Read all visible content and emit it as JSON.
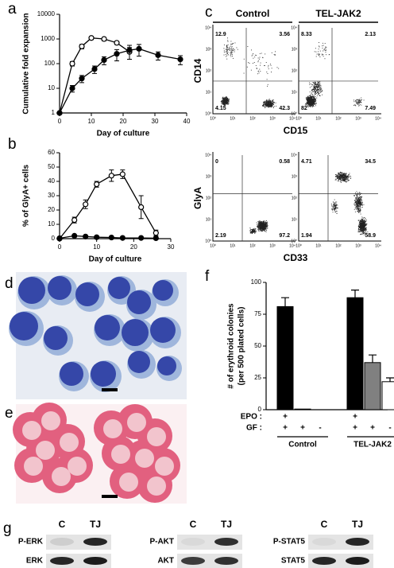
{
  "panel_labels": [
    "a",
    "b",
    "c",
    "d",
    "e",
    "f",
    "g"
  ],
  "chart_data": [
    {
      "type": "line",
      "ylabel": "Cumulative fold expansion",
      "xlabel": "Day of culture",
      "xlim": [
        0,
        40
      ],
      "xticks": [
        0,
        10,
        20,
        30,
        40
      ],
      "ylim": [
        1,
        10000
      ],
      "yticks": [
        1,
        10,
        100,
        1000,
        10000
      ],
      "log_y": true,
      "series": [
        {
          "marker": "open",
          "color": "#000000",
          "x": [
            0,
            4,
            7,
            10,
            14,
            18,
            22
          ],
          "values": [
            1,
            100,
            500,
            1100,
            1000,
            700,
            300
          ],
          "errors": [
            0,
            20,
            100,
            150,
            150,
            100,
            150
          ]
        },
        {
          "marker": "filled",
          "color": "#000000",
          "x": [
            0,
            4,
            7,
            11,
            14,
            18,
            22,
            25,
            31,
            38
          ],
          "values": [
            1,
            10,
            25,
            60,
            140,
            250,
            350,
            400,
            220,
            150
          ],
          "errors": [
            0,
            3,
            8,
            20,
            50,
            120,
            200,
            200,
            80,
            60
          ]
        }
      ]
    },
    {
      "type": "line",
      "ylabel": "% of GlyA+ cells",
      "xlabel": "Day of culture",
      "xlim": [
        0,
        30
      ],
      "xticks": [
        0,
        10,
        20,
        30
      ],
      "ylim": [
        0,
        60
      ],
      "yticks": [
        0,
        10,
        20,
        30,
        40,
        50,
        60
      ],
      "log_y": false,
      "series": [
        {
          "marker": "open",
          "color": "#000000",
          "x": [
            0,
            4,
            7,
            10,
            14,
            17,
            22,
            26
          ],
          "values": [
            0,
            13,
            24,
            38,
            44,
            45,
            22,
            4
          ],
          "errors": [
            0,
            2,
            3,
            2,
            4,
            3,
            8,
            2
          ]
        },
        {
          "marker": "filled",
          "color": "#000000",
          "x": [
            0,
            4,
            7,
            10,
            14,
            17,
            22,
            26
          ],
          "values": [
            0.3,
            2,
            1.5,
            1,
            0.8,
            0.5,
            0.5,
            0.3
          ],
          "errors": [
            0,
            0,
            0,
            0,
            0,
            0,
            0,
            0
          ]
        }
      ]
    },
    {
      "type": "bar",
      "ylabel": [
        "# of erythroid colonies",
        "(per 500 plated cells)"
      ],
      "ylim": [
        0,
        100
      ],
      "yticks": [
        0,
        25,
        50,
        75,
        100
      ],
      "values": [
        81,
        0.5,
        0,
        88,
        37,
        22
      ],
      "errors": [
        7,
        0,
        0,
        6,
        6,
        3
      ],
      "colors": [
        "#000000",
        "#000000",
        "#000000",
        "#000000",
        "#808080",
        "#ffffff"
      ],
      "row_labels": [
        "EPO :",
        "GF :"
      ],
      "rows": [
        [
          "+",
          null,
          null,
          "+",
          null,
          null
        ],
        [
          "+",
          "+",
          "-",
          "+",
          "+",
          "-"
        ]
      ],
      "groups": [
        "Control",
        "TEL-JAK2"
      ]
    }
  ],
  "flow": {
    "columns": [
      "Control",
      "TEL-JAK2"
    ],
    "axis_ticks": [
      "10⁰",
      "10¹",
      "10²",
      "10³",
      "10⁴"
    ],
    "plots": [
      {
        "ylabel": "CD14",
        "xlabel": "CD15",
        "quadrants": [
          [
            "12.9",
            "3.56",
            "4.15",
            "42.3"
          ],
          [
            "8.33",
            "2.13",
            "82",
            "7.49"
          ]
        ]
      },
      {
        "ylabel": "GlyA",
        "xlabel": "CD33",
        "quadrants": [
          [
            "0",
            "0.58",
            "2.19",
            "97.2"
          ],
          [
            "4.71",
            "34.5",
            "1.94",
            "58.9"
          ]
        ]
      }
    ]
  },
  "blots": {
    "lanes": [
      "C",
      "TJ"
    ],
    "panels": [
      [
        "P-ERK",
        "ERK"
      ],
      [
        "P-AKT",
        "AKT"
      ],
      [
        "P-STAT5",
        "STAT5"
      ]
    ]
  }
}
